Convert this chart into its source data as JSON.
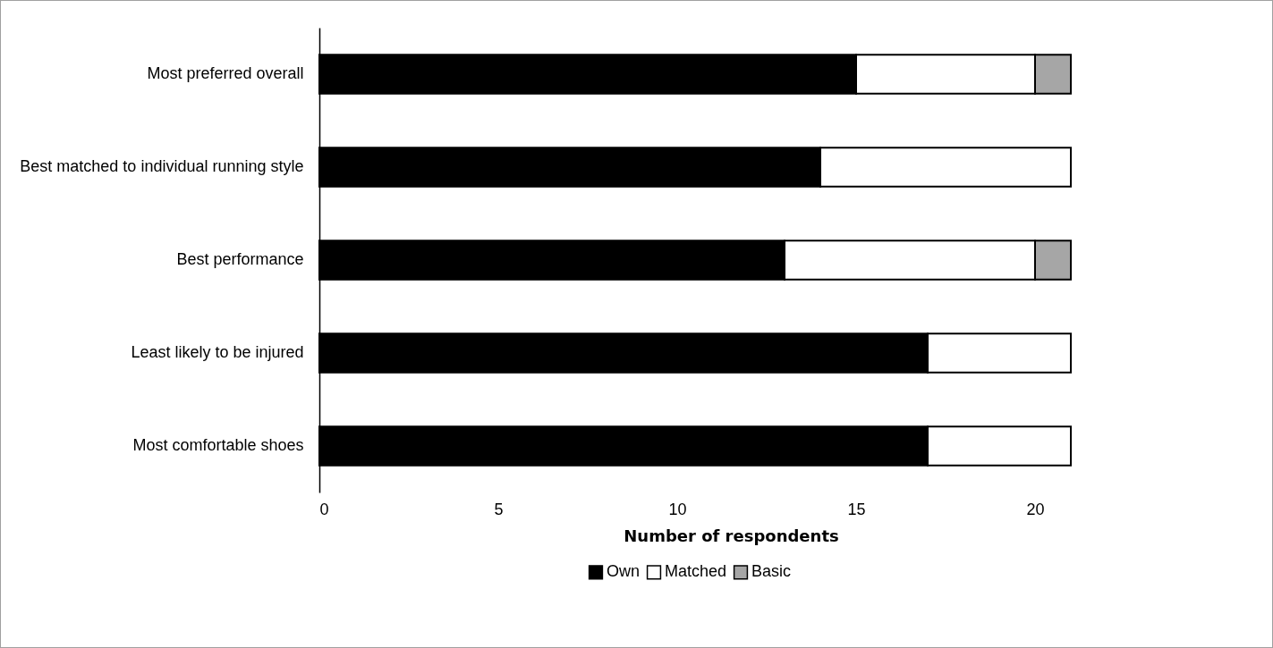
{
  "chart_data": {
    "type": "bar",
    "orientation": "horizontal",
    "stacked": true,
    "xlabel": "Number of respondents",
    "categories": [
      "Most preferred overall",
      "Best matched to individual running style",
      "Best performance",
      "Least likely to be injured",
      "Most comfortable shoes"
    ],
    "series": [
      {
        "name": "Own",
        "color": "#000000",
        "values": [
          15,
          14,
          13,
          17,
          17
        ]
      },
      {
        "name": "Matched",
        "color": "#ffffff",
        "values": [
          5,
          7,
          7,
          4,
          4
        ]
      },
      {
        "name": "Basic",
        "color": "#a6a6a6",
        "values": [
          1,
          null,
          1,
          null,
          null
        ]
      }
    ],
    "xlim": [
      0,
      21
    ],
    "xticks": [
      0,
      5,
      10,
      15,
      20
    ],
    "legend": "bottom"
  }
}
